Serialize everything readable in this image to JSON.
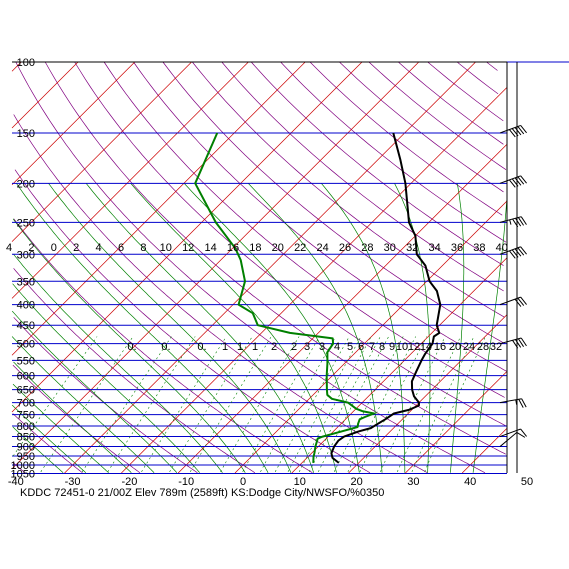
{
  "chart_data": {
    "type": "line",
    "title": "KDDC 72451-0 21/00Z  Elev 789m (2589ft) KS:Dodge City/NWSFO/%0350",
    "pressure_levels": [
      100,
      150,
      200,
      250,
      300,
      350,
      400,
      450,
      500,
      550,
      600,
      650,
      700,
      750,
      800,
      850,
      900,
      950,
      1000,
      1050
    ],
    "temperature_ticks": [
      -40,
      -30,
      -20,
      -10,
      0,
      10,
      20,
      30,
      40,
      50
    ],
    "mixing_ratio_upper_labels": [
      "4",
      "2",
      "0",
      "2",
      "4",
      "6",
      "8",
      "10",
      "12",
      "14",
      "16",
      "18",
      "20",
      "22",
      "24",
      "26",
      "28",
      "30",
      "32",
      "34",
      "36",
      "38",
      "40"
    ],
    "mixing_ratio_lower_labels": [
      "0.",
      "0.",
      "0.",
      "1",
      "1",
      "1",
      "2",
      "2",
      "3",
      "3",
      "4",
      "5",
      "6",
      "7",
      "8",
      "9",
      "10",
      "12",
      "14",
      "16",
      "20",
      "24",
      "28",
      "32"
    ],
    "series": [
      {
        "color": "#000000",
        "points": [
          [
            988,
            16.5
          ],
          [
            960,
            14.5
          ],
          [
            935,
            13.5
          ],
          [
            900,
            12.8
          ],
          [
            870,
            12.5
          ],
          [
            850,
            12.8
          ],
          [
            825,
            14.5
          ],
          [
            810,
            16.0
          ],
          [
            790,
            16.5
          ],
          [
            770,
            17.0
          ],
          [
            745,
            17.5
          ],
          [
            730,
            19.5
          ],
          [
            712,
            20.5
          ],
          [
            700,
            20.0
          ],
          [
            675,
            18.0
          ],
          [
            650,
            16.5
          ],
          [
            620,
            15.0
          ],
          [
            585,
            14.0
          ],
          [
            550,
            13.0
          ],
          [
            530,
            12.5
          ],
          [
            500,
            12.0
          ],
          [
            480,
            11.0
          ],
          [
            470,
            11.3
          ],
          [
            450,
            9.5
          ],
          [
            400,
            6.5
          ],
          [
            370,
            3.5
          ],
          [
            350,
            0.5
          ],
          [
            320,
            -3.0
          ],
          [
            300,
            -6.5
          ],
          [
            270,
            -10.0
          ],
          [
            250,
            -13.5
          ],
          [
            200,
            -21.0
          ],
          [
            175,
            -26.0
          ],
          [
            150,
            -32.0
          ]
        ]
      },
      {
        "color": "#008000",
        "points": [
          [
            988,
            12.0
          ],
          [
            955,
            11.0
          ],
          [
            935,
            10.5
          ],
          [
            900,
            9.5
          ],
          [
            860,
            8.5
          ],
          [
            850,
            9.0
          ],
          [
            825,
            11.5
          ],
          [
            805,
            13.5
          ],
          [
            790,
            13.0
          ],
          [
            770,
            12.5
          ],
          [
            760,
            13.0
          ],
          [
            745,
            14.0
          ],
          [
            735,
            11.5
          ],
          [
            725,
            10.0
          ],
          [
            700,
            7.5
          ],
          [
            685,
            4.0
          ],
          [
            670,
            2.5
          ],
          [
            650,
            1.5
          ],
          [
            600,
            -1.0
          ],
          [
            560,
            -3.0
          ],
          [
            525,
            -5.0
          ],
          [
            500,
            -5.5
          ],
          [
            485,
            -6.5
          ],
          [
            470,
            -15.0
          ],
          [
            450,
            -22.0
          ],
          [
            420,
            -25.0
          ],
          [
            400,
            -29.0
          ],
          [
            350,
            -32.0
          ],
          [
            310,
            -36.5
          ],
          [
            290,
            -39.5
          ],
          [
            250,
            -47.5
          ],
          [
            200,
            -58.0
          ],
          [
            150,
            -63.0
          ]
        ]
      }
    ],
    "wind_barbs": [
      {
        "p": 150,
        "dir": 250,
        "kt": 50
      },
      {
        "p": 200,
        "dir": 250,
        "kt": 50
      },
      {
        "p": 250,
        "dir": 255,
        "kt": 45
      },
      {
        "p": 300,
        "dir": 250,
        "kt": 50
      },
      {
        "p": 400,
        "dir": 250,
        "kt": 30
      },
      {
        "p": 500,
        "dir": 255,
        "kt": 40
      },
      {
        "p": 700,
        "dir": 260,
        "kt": 25
      },
      {
        "p": 850,
        "dir": 250,
        "kt": 10
      },
      {
        "p": 900,
        "dir": 230,
        "kt": 10
      }
    ]
  },
  "colors": {
    "isobar": "#0000cc",
    "isotherm": "#cc0000",
    "dry_adiabat": "#800080",
    "moist_adiabat": "#008000",
    "mixing_ratio": "#008000",
    "temperature": "#000000",
    "dewpoint": "#008000",
    "wind": "#000000"
  }
}
